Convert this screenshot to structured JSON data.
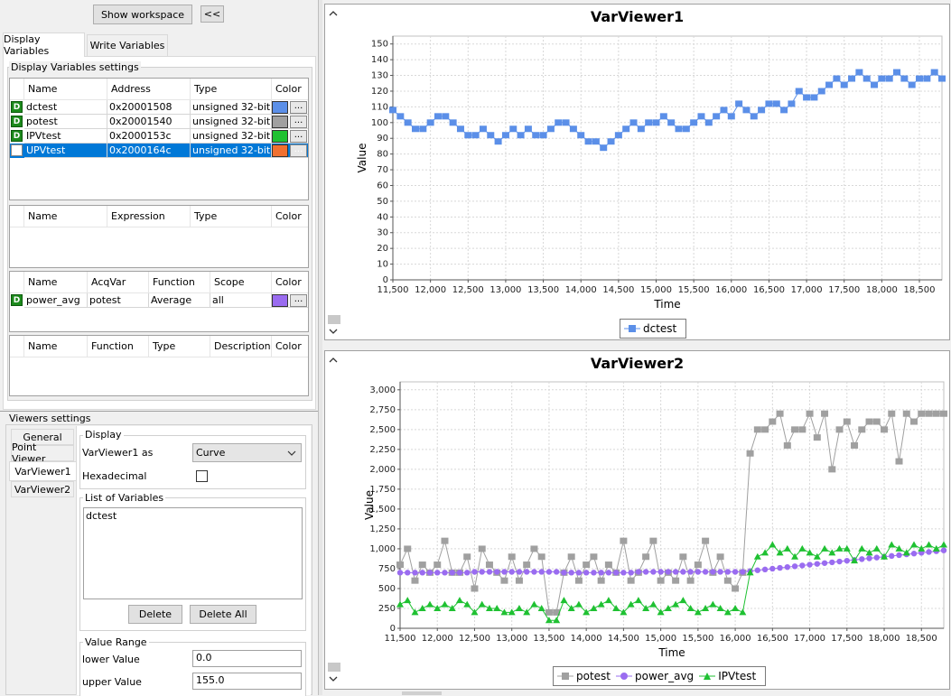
{
  "toolbar": {
    "show_workspace": "Show workspace",
    "collapse": "<<"
  },
  "tabs": [
    {
      "label": "Display Variables"
    },
    {
      "label": "Write Variables"
    }
  ],
  "dv_settings": {
    "title": "Display Variables settings",
    "var_table": {
      "columns": [
        "Name",
        "Address",
        "Type",
        "Color"
      ],
      "rows": [
        {
          "name": "dctest",
          "address": "0x20001508",
          "type": "unsigned 32-bit",
          "color": "#5b8fe8",
          "checked": true
        },
        {
          "name": "potest",
          "address": "0x20001540",
          "type": "unsigned 32-bit",
          "color": "#a0a0a0",
          "checked": true
        },
        {
          "name": "IPVtest",
          "address": "0x2000153c",
          "type": "unsigned 32-bit",
          "color": "#1fc132",
          "checked": true
        },
        {
          "name": "UPVtest",
          "address": "0x2000164c",
          "type": "unsigned 32-bit",
          "color": "#f07030",
          "checked": false
        }
      ],
      "dots": "..."
    },
    "expr_table": {
      "columns": [
        "Name",
        "Expression",
        "Type",
        "Color"
      ]
    },
    "acq_table": {
      "columns": [
        "Name",
        "AcqVar",
        "Function",
        "Scope",
        "Color"
      ],
      "rows": [
        {
          "name": "power_avg",
          "acqvar": "potest",
          "function": "Average",
          "scope": "all",
          "color": "#9a6cf0"
        }
      ],
      "dots": "..."
    },
    "func_table": {
      "columns": [
        "Name",
        "Function",
        "Type",
        "Description",
        "Color"
      ]
    }
  },
  "badge_letter": "D",
  "viewers_settings": {
    "title": "Viewers settings",
    "tabs": [
      "General",
      "Point Viewer",
      "VarViewer1",
      "VarViewer2"
    ],
    "display": {
      "title": "Display",
      "as_label": "VarViewer1 as",
      "as_value": "Curve",
      "hex_label": "Hexadecimal"
    },
    "list": {
      "title": "List of Variables",
      "items": [
        "dctest"
      ],
      "delete": "Delete",
      "delete_all": "Delete All"
    },
    "range": {
      "title": "Value Range",
      "lower_label": "lower Value",
      "lower_value": "0.0",
      "upper_label": "upper Value",
      "upper_value": "155.0"
    }
  },
  "chart_data": [
    {
      "type": "line",
      "title": "VarViewer1",
      "xlabel": "Time",
      "ylabel": "Value",
      "xlim": [
        11500,
        18800
      ],
      "ylim": [
        0,
        155
      ],
      "xticks": [
        11500,
        12000,
        12500,
        13000,
        13500,
        14000,
        14500,
        15000,
        15500,
        16000,
        16500,
        17000,
        17500,
        18000,
        18500
      ],
      "yticks": [
        0,
        10,
        20,
        30,
        40,
        50,
        60,
        70,
        80,
        90,
        100,
        110,
        120,
        130,
        140,
        150
      ],
      "xtick_labels": [
        "11,500",
        "12,000",
        "12,500",
        "13,000",
        "13,500",
        "14,000",
        "14,500",
        "15,000",
        "15,500",
        "16,000",
        "16,500",
        "17,000",
        "17,500",
        "18,000",
        "18,500"
      ],
      "ytick_labels": [
        "0",
        "10",
        "20",
        "30",
        "40",
        "50",
        "60",
        "70",
        "80",
        "90",
        "100",
        "110",
        "120",
        "130",
        "140",
        "150"
      ],
      "grid": true,
      "legend": "bottom",
      "series": [
        {
          "name": "dctest",
          "color": "#5b8fe8",
          "marker": "square",
          "x": [
            11500,
            11600,
            11700,
            11800,
            11900,
            12000,
            12100,
            12200,
            12300,
            12400,
            12500,
            12600,
            12700,
            12800,
            12900,
            13000,
            13100,
            13200,
            13300,
            13400,
            13500,
            13600,
            13700,
            13800,
            13900,
            14000,
            14100,
            14200,
            14300,
            14400,
            14500,
            14600,
            14700,
            14800,
            14900,
            15000,
            15100,
            15200,
            15300,
            15400,
            15500,
            15600,
            15700,
            15800,
            15900,
            16000,
            16100,
            16200,
            16300,
            16400,
            16500,
            16600,
            16700,
            16800,
            16900,
            17000,
            17100,
            17200,
            17300,
            17400,
            17500,
            17600,
            17700,
            17800,
            17900,
            18000,
            18100,
            18200,
            18300,
            18400,
            18500,
            18600,
            18700,
            18800
          ],
          "y": [
            108,
            104,
            100,
            96,
            96,
            100,
            104,
            104,
            100,
            96,
            92,
            92,
            96,
            92,
            88,
            92,
            96,
            92,
            96,
            92,
            92,
            96,
            100,
            100,
            96,
            92,
            88,
            88,
            84,
            88,
            92,
            96,
            100,
            96,
            100,
            100,
            104,
            100,
            96,
            96,
            100,
            104,
            100,
            104,
            108,
            104,
            112,
            108,
            104,
            108,
            112,
            112,
            108,
            112,
            120,
            116,
            116,
            120,
            124,
            128,
            124,
            128,
            132,
            128,
            124,
            128,
            128,
            132,
            128,
            124,
            128,
            128,
            132,
            128
          ]
        }
      ]
    },
    {
      "type": "line",
      "title": "VarViewer2",
      "xlabel": "Time",
      "ylabel": "Value",
      "xlim": [
        11500,
        18800
      ],
      "ylim": [
        0,
        3100
      ],
      "xticks": [
        11500,
        12000,
        12500,
        13000,
        13500,
        14000,
        14500,
        15000,
        15500,
        16000,
        16500,
        17000,
        17500,
        18000,
        18500
      ],
      "yticks": [
        0,
        250,
        500,
        750,
        1000,
        1250,
        1500,
        1750,
        2000,
        2250,
        2500,
        2750,
        3000
      ],
      "xtick_labels": [
        "11,500",
        "12,000",
        "12,500",
        "13,000",
        "13,500",
        "14,000",
        "14,500",
        "15,000",
        "15,500",
        "16,000",
        "16,500",
        "17,000",
        "17,500",
        "18,000",
        "18,500"
      ],
      "ytick_labels": [
        "0",
        "250",
        "500",
        "750",
        "1,000",
        "1,250",
        "1,500",
        "1,750",
        "2,000",
        "2,250",
        "2,500",
        "2,750",
        "3,000"
      ],
      "grid": true,
      "legend": "bottom",
      "series": [
        {
          "name": "potest",
          "color": "#a0a0a0",
          "marker": "square",
          "x": [
            11500,
            11600,
            11700,
            11800,
            11900,
            12000,
            12100,
            12200,
            12300,
            12400,
            12500,
            12600,
            12700,
            12800,
            12900,
            13000,
            13100,
            13200,
            13300,
            13400,
            13500,
            13600,
            13700,
            13800,
            13900,
            14000,
            14100,
            14200,
            14300,
            14400,
            14500,
            14600,
            14700,
            14800,
            14900,
            15000,
            15100,
            15200,
            15300,
            15400,
            15500,
            15600,
            15700,
            15800,
            15900,
            16000,
            16100,
            16200,
            16300,
            16400,
            16500,
            16600,
            16700,
            16800,
            16900,
            17000,
            17100,
            17200,
            17300,
            17400,
            17500,
            17600,
            17700,
            17800,
            17900,
            18000,
            18100,
            18200,
            18300,
            18400,
            18500,
            18600,
            18700,
            18800
          ],
          "y": [
            800,
            1000,
            600,
            800,
            700,
            800,
            1100,
            700,
            700,
            900,
            500,
            1000,
            800,
            700,
            600,
            900,
            600,
            800,
            1000,
            900,
            200,
            200,
            700,
            900,
            600,
            800,
            900,
            600,
            800,
            700,
            1100,
            600,
            700,
            900,
            1100,
            600,
            700,
            600,
            900,
            600,
            800,
            1100,
            700,
            900,
            600,
            500,
            700,
            2200,
            2500,
            2500,
            2600,
            2700,
            2300,
            2500,
            2500,
            2700,
            2400,
            2700,
            2000,
            2500,
            2600,
            2300,
            2500,
            2600,
            2600,
            2500,
            2700,
            2100,
            2700,
            2600,
            2700,
            2700,
            2700,
            2700
          ]
        },
        {
          "name": "power_avg",
          "color": "#9a6cf0",
          "marker": "circle",
          "x": [
            11500,
            11600,
            11700,
            11800,
            11900,
            12000,
            12100,
            12200,
            12300,
            12400,
            12500,
            12600,
            12700,
            12800,
            12900,
            13000,
            13100,
            13200,
            13300,
            13400,
            13500,
            13600,
            13700,
            13800,
            13900,
            14000,
            14100,
            14200,
            14300,
            14400,
            14500,
            14600,
            14700,
            14800,
            14900,
            15000,
            15100,
            15200,
            15300,
            15400,
            15500,
            15600,
            15700,
            15800,
            15900,
            16000,
            16100,
            16200,
            16300,
            16400,
            16500,
            16600,
            16700,
            16800,
            16900,
            17000,
            17100,
            17200,
            17300,
            17400,
            17500,
            17600,
            17700,
            17800,
            17900,
            18000,
            18100,
            18200,
            18300,
            18400,
            18500,
            18600,
            18700,
            18800
          ],
          "y": [
            700,
            700,
            700,
            700,
            700,
            700,
            700,
            700,
            700,
            700,
            710,
            710,
            710,
            710,
            710,
            710,
            710,
            710,
            710,
            710,
            710,
            710,
            700,
            700,
            700,
            700,
            700,
            700,
            700,
            700,
            700,
            700,
            710,
            710,
            710,
            710,
            710,
            710,
            710,
            710,
            710,
            710,
            710,
            710,
            710,
            710,
            710,
            720,
            730,
            740,
            750,
            760,
            770,
            780,
            790,
            800,
            810,
            820,
            830,
            840,
            850,
            860,
            870,
            880,
            890,
            900,
            910,
            920,
            930,
            940,
            950,
            960,
            970,
            980
          ]
        },
        {
          "name": "IPVtest",
          "color": "#1fc132",
          "marker": "triangle",
          "x": [
            11500,
            11600,
            11700,
            11800,
            11900,
            12000,
            12100,
            12200,
            12300,
            12400,
            12500,
            12600,
            12700,
            12800,
            12900,
            13000,
            13100,
            13200,
            13300,
            13400,
            13500,
            13600,
            13700,
            13800,
            13900,
            14000,
            14100,
            14200,
            14300,
            14400,
            14500,
            14600,
            14700,
            14800,
            14900,
            15000,
            15100,
            15200,
            15300,
            15400,
            15500,
            15600,
            15700,
            15800,
            15900,
            16000,
            16100,
            16200,
            16300,
            16400,
            16500,
            16600,
            16700,
            16800,
            16900,
            17000,
            17100,
            17200,
            17300,
            17400,
            17500,
            17600,
            17700,
            17800,
            17900,
            18000,
            18100,
            18200,
            18300,
            18400,
            18500,
            18600,
            18700,
            18800
          ],
          "y": [
            300,
            350,
            200,
            250,
            300,
            250,
            300,
            250,
            350,
            300,
            200,
            300,
            250,
            250,
            200,
            200,
            250,
            200,
            300,
            250,
            100,
            100,
            350,
            250,
            300,
            200,
            250,
            300,
            350,
            250,
            200,
            300,
            350,
            250,
            300,
            200,
            250,
            300,
            350,
            250,
            200,
            250,
            300,
            250,
            200,
            250,
            200,
            700,
            900,
            950,
            1050,
            950,
            1000,
            900,
            1000,
            950,
            900,
            1000,
            950,
            1000,
            1000,
            850,
            1000,
            950,
            1000,
            900,
            1050,
            1000,
            950,
            1050,
            1000,
            1050,
            1000,
            1050
          ]
        }
      ]
    }
  ]
}
